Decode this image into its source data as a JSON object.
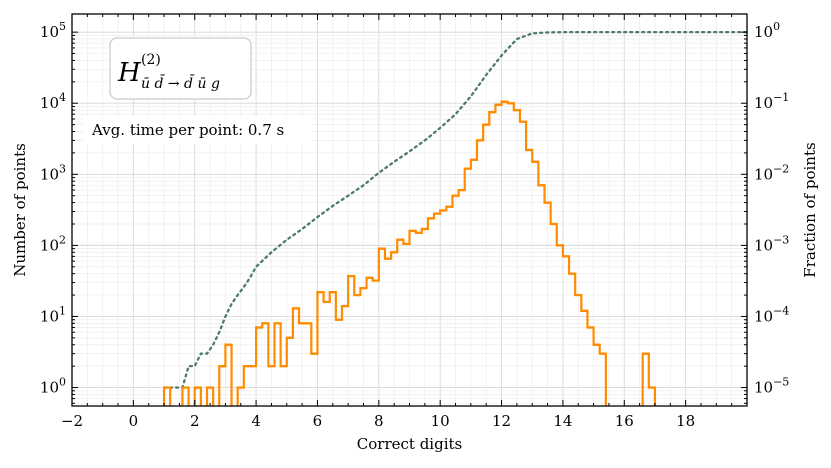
{
  "chart_data": {
    "type": "step-histogram",
    "title": "",
    "xlabel": "Correct digits",
    "ylabel": "Number of points",
    "ylabel_right": "Fraction of points",
    "xlim": [
      -2,
      20
    ],
    "ylim": [
      0.55,
      180000
    ],
    "yscale": "log",
    "grid": true,
    "x_ticks": [
      -2,
      0,
      2,
      4,
      6,
      8,
      10,
      12,
      14,
      16,
      18
    ],
    "x_tick_labels": [
      "−2",
      "0",
      "2",
      "4",
      "6",
      "8",
      "10",
      "12",
      "14",
      "16",
      "18"
    ],
    "y_ticks": [
      1,
      10,
      100,
      1000,
      10000,
      100000
    ],
    "y_tick_labels": [
      [
        "10",
        "0"
      ],
      [
        "10",
        "1"
      ],
      [
        "10",
        "2"
      ],
      [
        "10",
        "3"
      ],
      [
        "10",
        "4"
      ],
      [
        "10",
        "5"
      ]
    ],
    "y2_ticks": [
      1,
      10,
      100,
      1000,
      10000,
      100000
    ],
    "y2_tick_labels": [
      [
        "10",
        "−5"
      ],
      [
        "10",
        "−4"
      ],
      [
        "10",
        "−3"
      ],
      [
        "10",
        "−2"
      ],
      [
        "10",
        "−1"
      ],
      [
        "10",
        "0"
      ]
    ],
    "process_label": {
      "symbol": "H",
      "superscript": "(2)",
      "subscript": "ū d̄ → d̄ ū g"
    },
    "annotation": "Avg. time per point: 0.7 s",
    "bin_width": 0.2,
    "series": [
      {
        "name": "histogram",
        "style": "step",
        "color": "#ff8c00",
        "x": [
          1.0,
          1.2,
          1.4,
          1.6,
          1.8,
          2.0,
          2.2,
          2.4,
          2.6,
          2.8,
          3.0,
          3.2,
          3.4,
          3.6,
          3.8,
          4.0,
          4.2,
          4.4,
          4.6,
          4.8,
          5.0,
          5.2,
          5.4,
          5.6,
          5.8,
          6.0,
          6.2,
          6.4,
          6.6,
          6.8,
          7.0,
          7.2,
          7.4,
          7.6,
          7.8,
          8.0,
          8.2,
          8.4,
          8.6,
          8.8,
          9.0,
          9.2,
          9.4,
          9.6,
          9.8,
          10.0,
          10.2,
          10.4,
          10.6,
          10.8,
          11.0,
          11.2,
          11.4,
          11.6,
          11.8,
          12.0,
          12.2,
          12.4,
          12.6,
          12.8,
          13.0,
          13.2,
          13.4,
          13.6,
          13.8,
          14.0,
          14.2,
          14.4,
          14.6,
          14.8,
          15.0,
          15.2,
          15.4,
          15.6,
          15.8,
          16.0,
          16.2,
          16.4,
          16.6,
          16.8
        ],
        "values": [
          1,
          0.3,
          0.3,
          1,
          0.3,
          1,
          0.3,
          1,
          0.3,
          2,
          4,
          0.3,
          1,
          2,
          2,
          7,
          8,
          2,
          8,
          2,
          5,
          13,
          8,
          8,
          3,
          22,
          16,
          22,
          9,
          14,
          37,
          20,
          25,
          35,
          32,
          90,
          65,
          80,
          120,
          105,
          160,
          150,
          170,
          240,
          280,
          310,
          350,
          500,
          600,
          1200,
          1600,
          3000,
          5000,
          7500,
          9500,
          10500,
          10000,
          8000,
          5500,
          2200,
          1500,
          700,
          400,
          200,
          100,
          70,
          40,
          20,
          12,
          7,
          4,
          3,
          0.3,
          0.3,
          0.3,
          0.3,
          0.3,
          0.3,
          3,
          1
        ]
      },
      {
        "name": "cumulative fraction",
        "style": "dotted",
        "color": "#4f7a6e",
        "x": [
          1.0,
          1.6,
          1.8,
          2.0,
          2.2,
          2.4,
          2.6,
          2.8,
          3.0,
          3.2,
          3.4,
          3.6,
          3.8,
          4.0,
          4.5,
          5.0,
          5.5,
          6.0,
          6.5,
          7.0,
          7.5,
          8.0,
          8.5,
          9.0,
          9.5,
          10.0,
          10.5,
          11.0,
          11.5,
          12.0,
          12.5,
          13.0,
          13.5,
          14.0,
          15.0,
          16.0,
          17.0,
          18.0,
          20.0
        ],
        "fraction": [
          1e-05,
          1e-05,
          2e-05,
          2e-05,
          3e-05,
          3e-05,
          4e-05,
          6e-05,
          0.0001,
          0.00015,
          0.0002,
          0.00026,
          0.00035,
          0.0005,
          0.0008,
          0.0012,
          0.0017,
          0.0025,
          0.0036,
          0.005,
          0.007,
          0.0105,
          0.015,
          0.021,
          0.03,
          0.045,
          0.07,
          0.125,
          0.25,
          0.47,
          0.8,
          0.96,
          0.99,
          1.0,
          1.0,
          1.0,
          1.0,
          1.0,
          1.0
        ]
      }
    ]
  }
}
